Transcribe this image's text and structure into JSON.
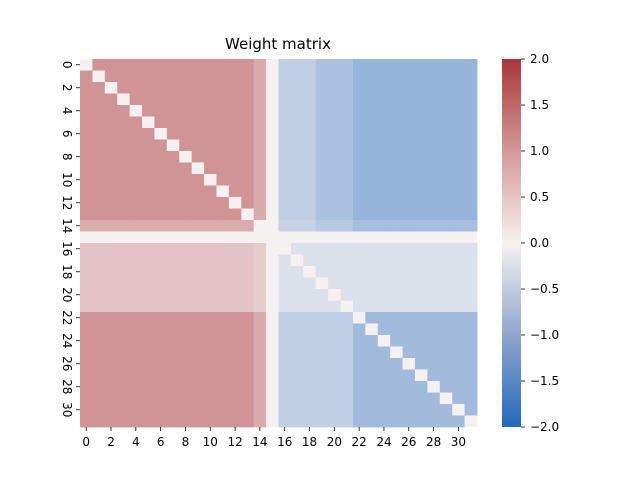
{
  "chart_data": {
    "type": "heatmap",
    "title": "Weight matrix",
    "rows": 32,
    "cols": 32,
    "x_tick_labels": [
      "0",
      "2",
      "4",
      "6",
      "8",
      "10",
      "12",
      "14",
      "16",
      "18",
      "20",
      "22",
      "24",
      "26",
      "28",
      "30"
    ],
    "y_tick_labels": [
      "0",
      "2",
      "4",
      "6",
      "8",
      "10",
      "12",
      "14",
      "16",
      "18",
      "20",
      "22",
      "24",
      "26",
      "28",
      "30"
    ],
    "colorbar": {
      "min": -2.0,
      "max": 2.0,
      "colormap": "vlag",
      "tick_labels": [
        "2.0",
        "1.5",
        "1.0",
        "0.5",
        "0.0",
        "−0.5",
        "−1.0",
        "−1.5",
        "−2.0"
      ],
      "tick_values": [
        2.0,
        1.5,
        1.0,
        0.5,
        0.0,
        -0.5,
        -1.0,
        -1.5,
        -2.0
      ]
    },
    "blocks": {
      "rows_0_13": {
        "cols_0_13": 1.0,
        "col_14": 0.75,
        "col_15": 0.0,
        "cols_16_18": -0.5,
        "cols_19_21": -0.7,
        "cols_22_31": -0.9
      },
      "row_14": {
        "cols_0_13": 0.75,
        "col_14": 0.5,
        "col_15": 0.0,
        "cols_16_18": -0.45,
        "cols_19_21": -0.6,
        "cols_22_31": -0.75
      },
      "row_15": 0.0,
      "rows_16_21": {
        "cols_0_13": 0.5,
        "col_14": 0.4,
        "col_15": 0.0,
        "cols_16_31": -0.25
      },
      "rows_22_31": {
        "cols_0_13": 1.0,
        "col_14": 0.75,
        "col_15": 0.0,
        "cols_16_21": -0.5,
        "cols_22_31": -0.8
      }
    },
    "diagonal_value": 0.0
  },
  "colors": {
    "positive_end": "#a9373b",
    "neutral": "#f6f1f1",
    "negative_end": "#2369bd"
  }
}
